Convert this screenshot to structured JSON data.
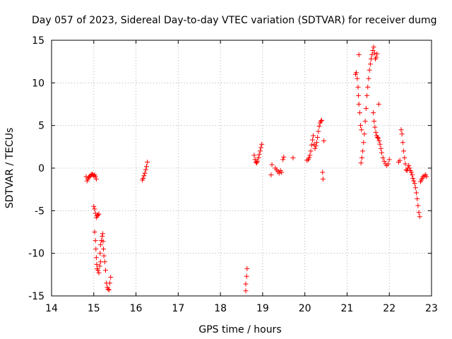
{
  "chart_data": {
    "type": "scatter",
    "title": "Day 057 of 2023, Sidereal Day-to-day VTEC variation (SDTVAR) for receiver dumg",
    "xlabel": "GPS time / hours",
    "ylabel": "SDTVAR / TECUs",
    "xlim": [
      14,
      23
    ],
    "ylim": [
      -15,
      15
    ],
    "xticks": [
      14,
      15,
      16,
      17,
      18,
      19,
      20,
      21,
      22,
      23
    ],
    "yticks": [
      -15,
      -10,
      -5,
      0,
      5,
      10,
      15
    ],
    "grid": true,
    "marker": "+",
    "color": "#ff0000",
    "series": [
      {
        "name": "SDTVAR",
        "points": [
          [
            14.82,
            -1.0
          ],
          [
            14.84,
            -1.5
          ],
          [
            14.86,
            -1.3
          ],
          [
            14.88,
            -1.1
          ],
          [
            14.9,
            -1.0
          ],
          [
            14.92,
            -0.9
          ],
          [
            14.94,
            -0.8
          ],
          [
            14.96,
            -0.7
          ],
          [
            14.98,
            -0.8
          ],
          [
            15.0,
            -0.9
          ],
          [
            15.02,
            -0.8
          ],
          [
            15.04,
            -1.0
          ],
          [
            15.06,
            -1.3
          ],
          [
            15.0,
            -4.5
          ],
          [
            15.02,
            -4.8
          ],
          [
            15.04,
            -5.3
          ],
          [
            15.06,
            -5.8
          ],
          [
            15.08,
            -5.6
          ],
          [
            15.1,
            -5.5
          ],
          [
            15.12,
            -5.4
          ],
          [
            15.02,
            -7.5
          ],
          [
            15.04,
            -8.5
          ],
          [
            15.05,
            -9.5
          ],
          [
            15.06,
            -10.5
          ],
          [
            15.07,
            -11.3
          ],
          [
            15.08,
            -11.8
          ],
          [
            15.1,
            -12.0
          ],
          [
            15.12,
            -12.3
          ],
          [
            15.14,
            -11.5
          ],
          [
            15.16,
            -11.0
          ],
          [
            15.15,
            -10.0
          ],
          [
            15.16,
            -9.0
          ],
          [
            15.18,
            -8.5
          ],
          [
            15.2,
            -8.0
          ],
          [
            15.21,
            -7.7
          ],
          [
            15.22,
            -8.6
          ],
          [
            15.23,
            -9.5
          ],
          [
            15.24,
            -10.3
          ],
          [
            15.26,
            -11.0
          ],
          [
            15.28,
            -12.0
          ],
          [
            15.3,
            -13.5
          ],
          [
            15.32,
            -14.0
          ],
          [
            15.34,
            -14.2
          ],
          [
            15.36,
            -14.3
          ],
          [
            15.38,
            -13.5
          ],
          [
            15.4,
            -12.8
          ],
          [
            16.15,
            -1.4
          ],
          [
            16.17,
            -1.2
          ],
          [
            16.19,
            -0.9
          ],
          [
            16.21,
            -0.6
          ],
          [
            16.23,
            -0.2
          ],
          [
            16.25,
            0.2
          ],
          [
            16.27,
            0.7
          ],
          [
            18.6,
            -14.4
          ],
          [
            18.6,
            -13.6
          ],
          [
            18.62,
            -12.7
          ],
          [
            18.63,
            -11.8
          ],
          [
            18.8,
            1.5
          ],
          [
            18.82,
            1.0
          ],
          [
            18.84,
            0.7
          ],
          [
            18.86,
            0.6
          ],
          [
            18.88,
            0.8
          ],
          [
            18.9,
            1.2
          ],
          [
            18.92,
            1.6
          ],
          [
            18.94,
            2.0
          ],
          [
            18.96,
            2.4
          ],
          [
            18.98,
            2.8
          ],
          [
            19.2,
            -0.8
          ],
          [
            19.22,
            0.4
          ],
          [
            19.3,
            0.0
          ],
          [
            19.33,
            -0.2
          ],
          [
            19.36,
            -0.4
          ],
          [
            19.39,
            -0.6
          ],
          [
            19.42,
            -0.3
          ],
          [
            19.45,
            -0.5
          ],
          [
            19.48,
            1.0
          ],
          [
            19.5,
            1.3
          ],
          [
            19.72,
            1.2
          ],
          [
            20.05,
            0.9
          ],
          [
            20.08,
            1.0
          ],
          [
            20.1,
            1.2
          ],
          [
            20.12,
            1.5
          ],
          [
            20.14,
            2.0
          ],
          [
            20.16,
            2.7
          ],
          [
            20.18,
            3.3
          ],
          [
            20.2,
            3.8
          ],
          [
            20.22,
            2.8
          ],
          [
            20.24,
            2.3
          ],
          [
            20.26,
            2.6
          ],
          [
            20.28,
            3.0
          ],
          [
            20.3,
            3.6
          ],
          [
            20.32,
            4.3
          ],
          [
            20.34,
            4.9
          ],
          [
            20.36,
            5.3
          ],
          [
            20.38,
            5.5
          ],
          [
            20.4,
            5.6
          ],
          [
            20.42,
            -0.5
          ],
          [
            20.43,
            -1.3
          ],
          [
            20.45,
            3.2
          ],
          [
            21.2,
            11.0
          ],
          [
            21.22,
            11.2
          ],
          [
            21.24,
            10.5
          ],
          [
            21.26,
            9.5
          ],
          [
            21.27,
            8.5
          ],
          [
            21.28,
            7.5
          ],
          [
            21.3,
            6.5
          ],
          [
            21.32,
            5.0
          ],
          [
            21.34,
            4.5
          ],
          [
            21.33,
            0.6
          ],
          [
            21.35,
            1.2
          ],
          [
            21.37,
            2.0
          ],
          [
            21.39,
            3.0
          ],
          [
            21.41,
            4.0
          ],
          [
            21.43,
            5.5
          ],
          [
            21.45,
            7.0
          ],
          [
            21.47,
            8.5
          ],
          [
            21.49,
            9.5
          ],
          [
            21.51,
            10.5
          ],
          [
            21.53,
            11.5
          ],
          [
            21.55,
            12.2
          ],
          [
            21.57,
            12.8
          ],
          [
            21.59,
            13.3
          ],
          [
            21.61,
            13.8
          ],
          [
            21.63,
            14.2
          ],
          [
            21.65,
            13.5
          ],
          [
            21.67,
            12.8
          ],
          [
            21.69,
            13.0
          ],
          [
            21.71,
            13.4
          ],
          [
            21.28,
            13.3
          ],
          [
            21.62,
            6.5
          ],
          [
            21.64,
            5.5
          ],
          [
            21.66,
            4.8
          ],
          [
            21.68,
            4.2
          ],
          [
            21.7,
            3.8
          ],
          [
            21.72,
            3.6
          ],
          [
            21.74,
            3.5
          ],
          [
            21.76,
            3.2
          ],
          [
            21.78,
            2.8
          ],
          [
            21.8,
            2.3
          ],
          [
            21.82,
            1.8
          ],
          [
            21.85,
            1.2
          ],
          [
            21.88,
            0.8
          ],
          [
            21.91,
            0.5
          ],
          [
            21.94,
            0.3
          ],
          [
            21.97,
            0.5
          ],
          [
            22.0,
            1.0
          ],
          [
            21.75,
            7.5
          ],
          [
            22.22,
            0.7
          ],
          [
            22.25,
            0.9
          ],
          [
            22.28,
            4.5
          ],
          [
            22.3,
            4.0
          ],
          [
            22.32,
            3.0
          ],
          [
            22.34,
            2.0
          ],
          [
            22.36,
            1.2
          ],
          [
            22.38,
            0.5
          ],
          [
            22.4,
            -0.2
          ],
          [
            22.42,
            -0.3
          ],
          [
            22.44,
            0.0
          ],
          [
            22.46,
            0.3
          ],
          [
            22.48,
            0.0
          ],
          [
            22.5,
            -0.3
          ],
          [
            22.52,
            -0.5
          ],
          [
            22.54,
            -0.8
          ],
          [
            22.56,
            -1.2
          ],
          [
            22.58,
            -1.5
          ],
          [
            22.6,
            -1.8
          ],
          [
            22.62,
            -2.3
          ],
          [
            22.64,
            -2.9
          ],
          [
            22.66,
            -3.6
          ],
          [
            22.68,
            -4.4
          ],
          [
            22.7,
            -5.2
          ],
          [
            22.72,
            -5.7
          ],
          [
            22.74,
            -1.6
          ],
          [
            22.76,
            -1.4
          ],
          [
            22.78,
            -1.2
          ],
          [
            22.8,
            -1.0
          ],
          [
            22.83,
            -0.9
          ],
          [
            22.86,
            -0.8
          ],
          [
            22.88,
            -1.0
          ]
        ]
      }
    ]
  }
}
